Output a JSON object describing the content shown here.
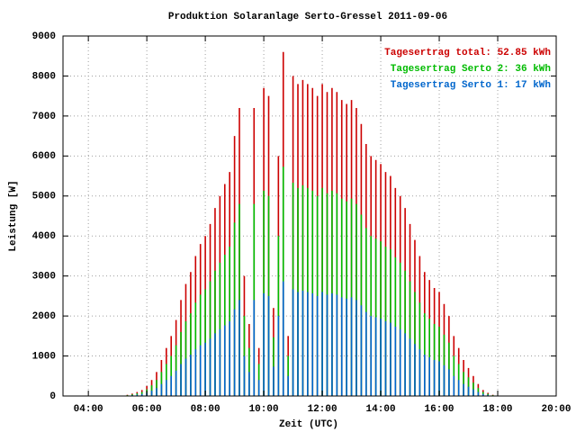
{
  "chart_data": {
    "type": "impulse",
    "title": "Produktion Solaranlage Serto-Gressel 2011-09-06",
    "x_label": "Zeit (UTC)",
    "y_label": "Leistung [W]",
    "x": [
      300,
      310,
      320,
      330,
      340,
      350,
      360,
      370,
      380,
      390,
      400,
      410,
      420,
      430,
      440,
      450,
      460,
      470,
      480,
      490,
      500,
      510,
      520,
      530,
      540,
      550,
      560,
      570,
      580,
      590,
      600,
      610,
      620,
      630,
      640,
      650,
      660,
      670,
      680,
      690,
      700,
      710,
      720,
      730,
      740,
      750,
      760,
      770,
      780,
      790,
      800,
      810,
      820,
      830,
      840,
      850,
      860,
      870,
      880,
      890,
      900,
      910,
      920,
      930,
      940,
      950,
      960,
      970,
      980,
      990,
      1000,
      1010,
      1020,
      1030,
      1040,
      1050,
      1060,
      1070,
      1080
    ],
    "series": [
      {
        "name": "Tagesertrag total: 52.85 kWh",
        "color": "#cc0000",
        "values": [
          0,
          10,
          30,
          60,
          100,
          150,
          250,
          400,
          600,
          900,
          1200,
          1500,
          1900,
          2400,
          2800,
          3100,
          3500,
          3800,
          4000,
          4300,
          4700,
          5000,
          5300,
          5600,
          6500,
          7200,
          3000,
          1800,
          7200,
          1200,
          7700,
          7500,
          2200,
          6000,
          8600,
          1500,
          8000,
          7800,
          7900,
          7800,
          7700,
          7500,
          7800,
          7600,
          7700,
          7600,
          7400,
          7300,
          7400,
          7200,
          6800,
          6300,
          6000,
          5900,
          5800,
          5600,
          5500,
          5200,
          5000,
          4700,
          4300,
          3900,
          3500,
          3100,
          2900,
          2700,
          2600,
          2300,
          2000,
          1500,
          1200,
          900,
          700,
          500,
          300,
          150,
          80,
          30,
          0
        ]
      },
      {
        "name": "Tagesertrag Serto 2: 36 kWh",
        "color": "#00bb00",
        "values": [
          0,
          7,
          20,
          40,
          67,
          100,
          167,
          267,
          400,
          600,
          800,
          1000,
          1267,
          1600,
          1867,
          2067,
          2333,
          2533,
          2667,
          2867,
          3133,
          3333,
          3533,
          3733,
          4333,
          4800,
          2000,
          1200,
          4800,
          800,
          5133,
          5000,
          1467,
          4000,
          5733,
          1000,
          5333,
          5200,
          5267,
          5200,
          5133,
          5000,
          5200,
          5067,
          5133,
          5067,
          4933,
          4867,
          4933,
          4800,
          4533,
          4200,
          4000,
          3933,
          3867,
          3733,
          3667,
          3467,
          3333,
          3133,
          2867,
          2600,
          2333,
          2067,
          1933,
          1800,
          1733,
          1533,
          1333,
          1000,
          800,
          600,
          467,
          333,
          200,
          100,
          53,
          20,
          0
        ]
      },
      {
        "name": "Tagesertrag Serto 1: 17 kWh",
        "color": "#0066cc",
        "values": [
          0,
          3,
          10,
          20,
          33,
          50,
          83,
          133,
          200,
          300,
          400,
          500,
          633,
          800,
          933,
          1033,
          1167,
          1267,
          1333,
          1433,
          1567,
          1667,
          1767,
          1867,
          2167,
          2400,
          1000,
          600,
          2400,
          400,
          2567,
          2500,
          733,
          2000,
          2867,
          500,
          2667,
          2600,
          2633,
          2600,
          2567,
          2500,
          2600,
          2533,
          2567,
          2533,
          2467,
          2433,
          2467,
          2400,
          2267,
          2100,
          2000,
          1967,
          1933,
          1867,
          1833,
          1733,
          1667,
          1567,
          1433,
          1300,
          1167,
          1033,
          967,
          900,
          867,
          767,
          667,
          500,
          400,
          300,
          233,
          167,
          100,
          50,
          27,
          10,
          0
        ]
      }
    ],
    "xlim": [
      188,
      1200
    ],
    "xticks": [
      {
        "value": 240,
        "label": "04:00"
      },
      {
        "value": 360,
        "label": "06:00"
      },
      {
        "value": 480,
        "label": "08:00"
      },
      {
        "value": 600,
        "label": "10:00"
      },
      {
        "value": 720,
        "label": "12:00"
      },
      {
        "value": 840,
        "label": "14:00"
      },
      {
        "value": 960,
        "label": "16:00"
      },
      {
        "value": 1080,
        "label": "18:00"
      },
      {
        "value": 1200,
        "label": "20:00"
      }
    ],
    "ylim": [
      0,
      9000
    ],
    "yticks": [
      0,
      1000,
      2000,
      3000,
      4000,
      5000,
      6000,
      7000,
      8000,
      9000
    ],
    "grid": true,
    "legend": "top-right"
  }
}
